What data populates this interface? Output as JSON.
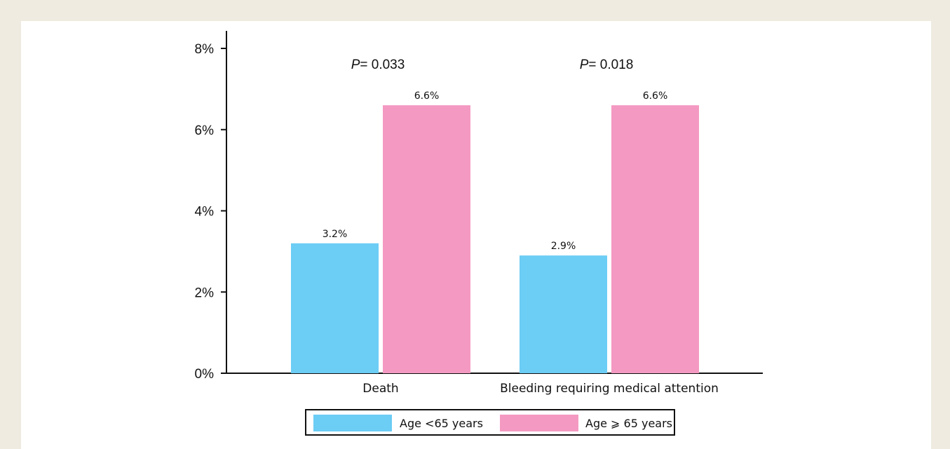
{
  "chart_data": {
    "type": "bar",
    "categories": [
      "Death",
      "Bleeding requiring medical attention"
    ],
    "series": [
      {
        "name": "Age <65 years",
        "values": [
          3.2,
          2.9
        ],
        "labels": [
          "3.2%",
          "2.9%"
        ],
        "color": "#6ccdf5"
      },
      {
        "name": "Age ⩾ 65 years",
        "values": [
          6.6,
          6.6
        ],
        "labels": [
          "6.6%",
          "6.6%"
        ],
        "color": "#f49ac2"
      }
    ],
    "p_values": [
      {
        "prefix": "P",
        "text": "= 0.033"
      },
      {
        "prefix": "P",
        "text": "= 0.018"
      }
    ],
    "ylim": [
      0,
      8
    ],
    "yticks": [
      "0%",
      "2%",
      "4%",
      "6%",
      "8%"
    ],
    "ytick_values": [
      0,
      2,
      4,
      6,
      8
    ],
    "legend_position": "bottom-center",
    "grid": false
  },
  "legend": {
    "items": [
      {
        "label": "Age <65 years",
        "color": "#6ccdf5"
      },
      {
        "label": "Age ⩾ 65 years",
        "color": "#f49ac2"
      }
    ]
  }
}
